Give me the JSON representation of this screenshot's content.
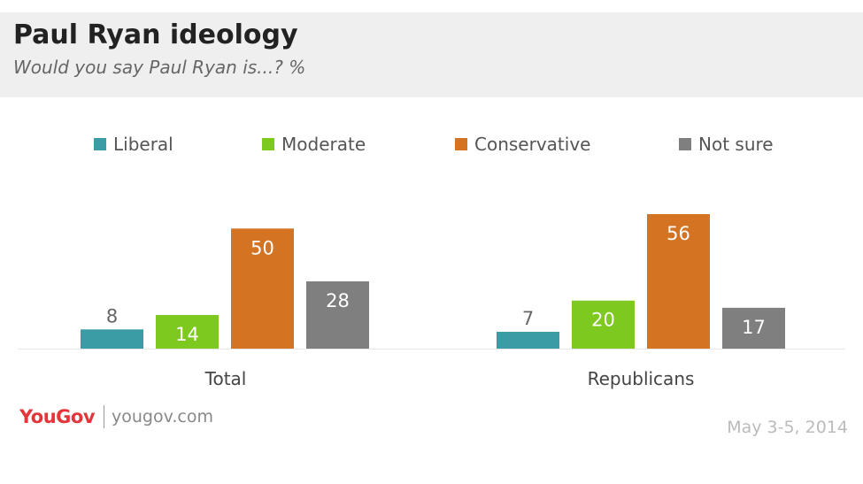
{
  "header": {
    "title": "Paul Ryan ideology",
    "subtitle": "Would you say Paul Ryan is...? %"
  },
  "chart_data": {
    "type": "bar",
    "categories": [
      "Total",
      "Republicans"
    ],
    "series": [
      {
        "name": "Liberal",
        "values": [
          8,
          7
        ],
        "color": "#3c9ca6"
      },
      {
        "name": "Moderate",
        "values": [
          14,
          20
        ],
        "color": "#7ec91f"
      },
      {
        "name": "Conservative",
        "values": [
          50,
          56
        ],
        "color": "#d47422"
      },
      {
        "name": "Not sure",
        "values": [
          28,
          17
        ],
        "color": "#7f7f7f"
      }
    ],
    "ylim": [
      0,
      56
    ],
    "grid": false,
    "legend": "top"
  },
  "footer": {
    "brand": "YouGov",
    "url": "yougov.com",
    "date": "May 3-5, 2014"
  }
}
